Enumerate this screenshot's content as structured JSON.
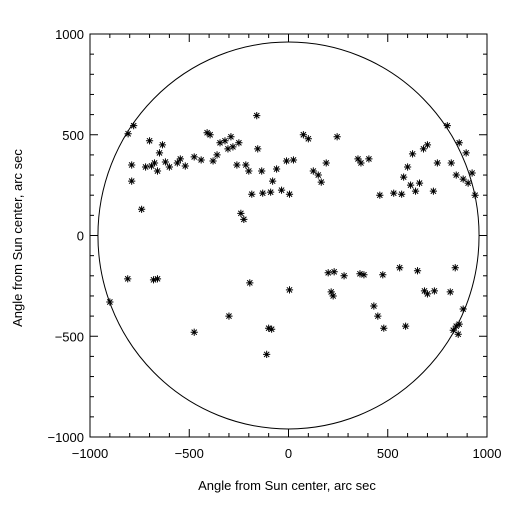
{
  "chart_data": {
    "type": "scatter",
    "title": "",
    "xlabel": "Angle from Sun center, arc sec",
    "ylabel": "Angle from Sun center, arc sec",
    "xlim": [
      -1000,
      1000
    ],
    "ylim": [
      -1000,
      1000
    ],
    "xticks": [
      -1000,
      -500,
      0,
      500,
      1000
    ],
    "yticks": [
      -1000,
      -500,
      0,
      500,
      1000
    ],
    "xtick_labels": [
      "−1000",
      "−500",
      "0",
      "500",
      "1000"
    ],
    "ytick_labels": [
      "−1000",
      "−500",
      "0",
      "500",
      "1000"
    ],
    "grid": false,
    "marker": "asterisk",
    "colors": {
      "marks": "#000000",
      "background": "#ffffff"
    },
    "overlay_circle": {
      "center": [
        0,
        0
      ],
      "radius": 960
    },
    "series": [
      {
        "points": [
          [
            -808,
            505
          ],
          [
            -780,
            545
          ],
          [
            -790,
            350
          ],
          [
            -790,
            270
          ],
          [
            -740,
            130
          ],
          [
            -720,
            340
          ],
          [
            -700,
            470
          ],
          [
            -690,
            345
          ],
          [
            -675,
            360
          ],
          [
            -660,
            320
          ],
          [
            -650,
            410
          ],
          [
            -635,
            450
          ],
          [
            -620,
            365
          ],
          [
            -600,
            340
          ],
          [
            -560,
            360
          ],
          [
            -545,
            380
          ],
          [
            -520,
            345
          ],
          [
            -475,
            390
          ],
          [
            -440,
            375
          ],
          [
            -410,
            510
          ],
          [
            -395,
            500
          ],
          [
            -380,
            370
          ],
          [
            -360,
            400
          ],
          [
            -345,
            460
          ],
          [
            -320,
            470
          ],
          [
            -305,
            430
          ],
          [
            -290,
            490
          ],
          [
            -280,
            440
          ],
          [
            -260,
            350
          ],
          [
            -250,
            460
          ],
          [
            -240,
            110
          ],
          [
            -225,
            80
          ],
          [
            -215,
            350
          ],
          [
            -200,
            320
          ],
          [
            -185,
            205
          ],
          [
            -160,
            595
          ],
          [
            -155,
            430
          ],
          [
            -135,
            320
          ],
          [
            -130,
            210
          ],
          [
            -90,
            215
          ],
          [
            -80,
            270
          ],
          [
            -60,
            330
          ],
          [
            -35,
            225
          ],
          [
            -10,
            370
          ],
          [
            5,
            205
          ],
          [
            25,
            375
          ],
          [
            75,
            500
          ],
          [
            100,
            480
          ],
          [
            125,
            320
          ],
          [
            150,
            300
          ],
          [
            165,
            265
          ],
          [
            190,
            360
          ],
          [
            245,
            490
          ],
          [
            350,
            380
          ],
          [
            365,
            360
          ],
          [
            405,
            380
          ],
          [
            460,
            200
          ],
          [
            530,
            210
          ],
          [
            570,
            205
          ],
          [
            580,
            290
          ],
          [
            600,
            340
          ],
          [
            615,
            250
          ],
          [
            625,
            405
          ],
          [
            640,
            220
          ],
          [
            660,
            260
          ],
          [
            680,
            430
          ],
          [
            700,
            450
          ],
          [
            730,
            220
          ],
          [
            750,
            360
          ],
          [
            800,
            545
          ],
          [
            820,
            360
          ],
          [
            845,
            300
          ],
          [
            860,
            460
          ],
          [
            880,
            280
          ],
          [
            895,
            410
          ],
          [
            905,
            260
          ],
          [
            925,
            310
          ],
          [
            940,
            200
          ],
          [
            -810,
            -215
          ],
          [
            -900,
            -330
          ],
          [
            -680,
            -220
          ],
          [
            -660,
            -215
          ],
          [
            -475,
            -480
          ],
          [
            -300,
            -400
          ],
          [
            -195,
            -235
          ],
          [
            -110,
            -590
          ],
          [
            -100,
            -460
          ],
          [
            -85,
            -465
          ],
          [
            5,
            -270
          ],
          [
            200,
            -185
          ],
          [
            215,
            -280
          ],
          [
            225,
            -300
          ],
          [
            230,
            -180
          ],
          [
            280,
            -200
          ],
          [
            360,
            -190
          ],
          [
            380,
            -195
          ],
          [
            430,
            -350
          ],
          [
            450,
            -400
          ],
          [
            475,
            -195
          ],
          [
            480,
            -460
          ],
          [
            560,
            -160
          ],
          [
            590,
            -450
          ],
          [
            650,
            -175
          ],
          [
            685,
            -275
          ],
          [
            700,
            -290
          ],
          [
            735,
            -275
          ],
          [
            815,
            -280
          ],
          [
            830,
            -470
          ],
          [
            840,
            -160
          ],
          [
            845,
            -450
          ],
          [
            855,
            -490
          ],
          [
            860,
            -440
          ],
          [
            880,
            -365
          ]
        ]
      }
    ]
  }
}
